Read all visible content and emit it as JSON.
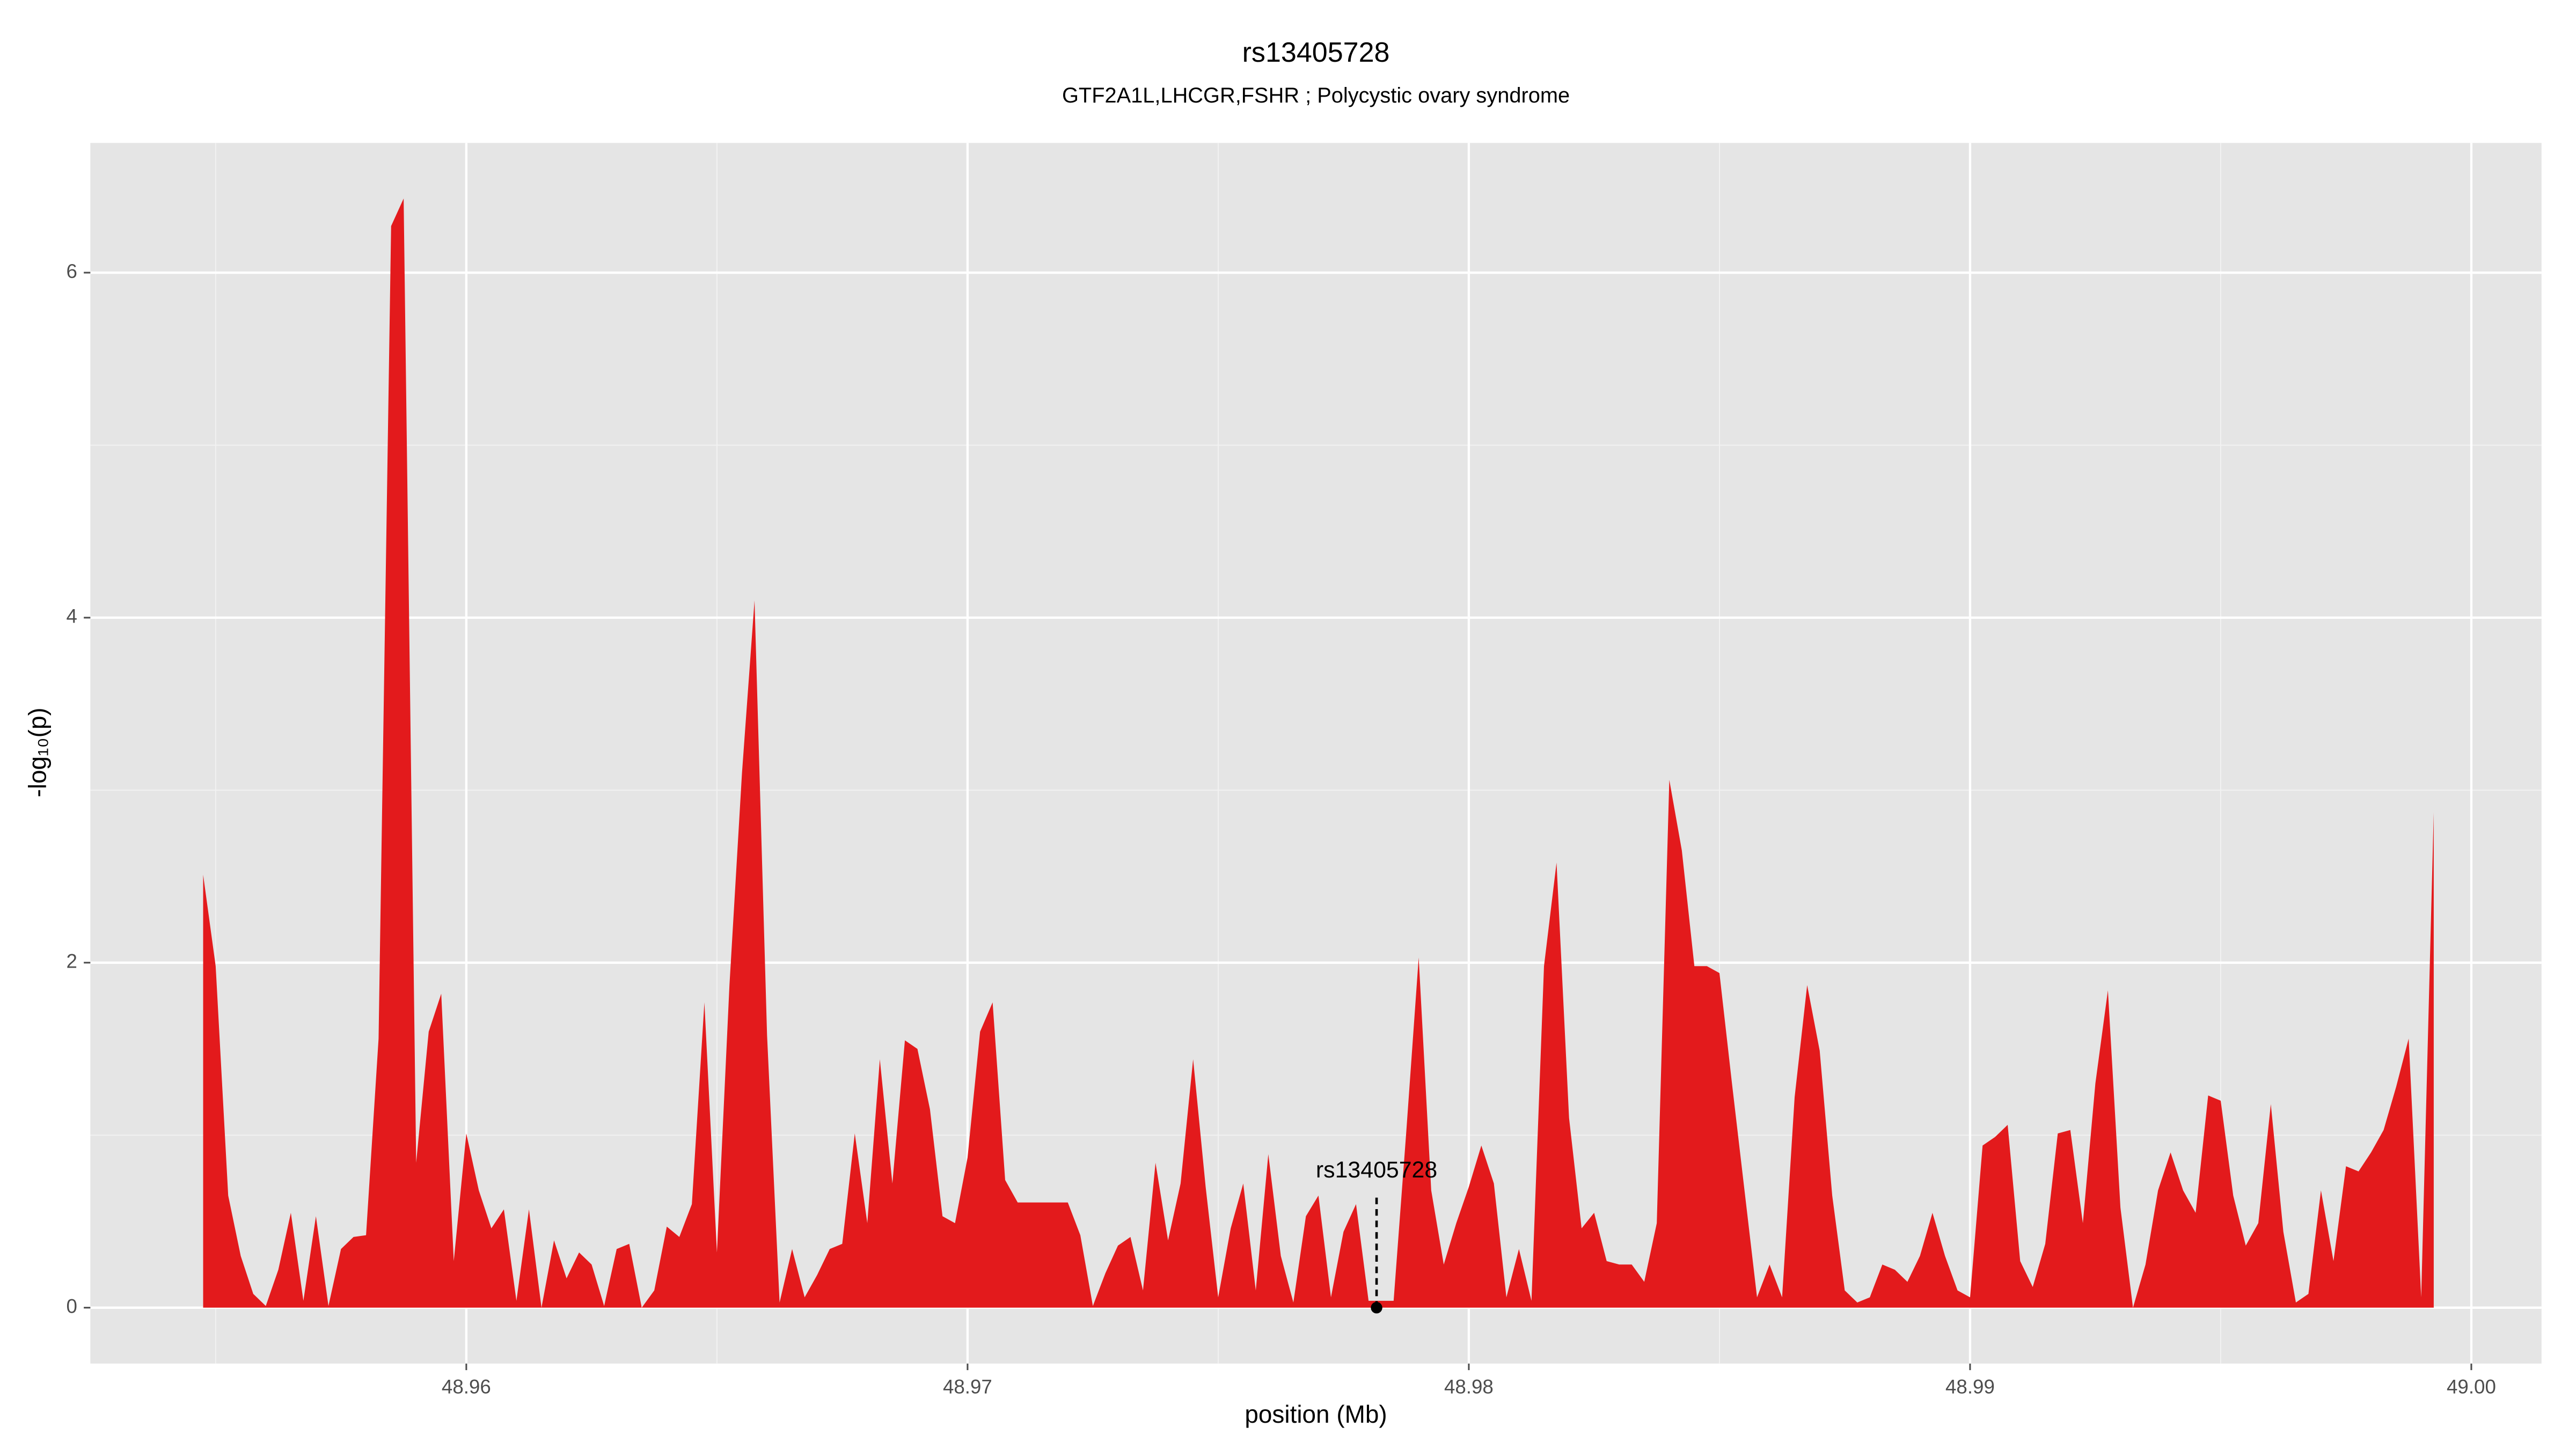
{
  "chart_data": {
    "type": "area",
    "title": "rs13405728",
    "subtitle": "GTF2A1L,LHCGR,FSHR ; Polycystic ovary syndrome",
    "x_label": "position (Mb)",
    "y_label": "-log₁₀(p)",
    "xlim": [
      48.9525,
      49.0014
    ],
    "ylim": [
      -0.324,
      6.752
    ],
    "xticks": [
      48.96,
      48.97,
      48.98,
      48.99,
      {
        "value": 49,
        "label": "49.00"
      }
    ],
    "yticks": [
      0,
      2,
      4,
      6
    ],
    "grid": true,
    "series": [
      {
        "color": "#e31a1c",
        "x": [
          48.95475,
          48.955,
          48.95525,
          48.9555,
          48.95575,
          48.956,
          48.95625,
          48.9565,
          48.95675,
          48.957,
          48.95725,
          48.9575,
          48.95775,
          48.958,
          48.95825,
          48.9585,
          48.95875,
          48.959,
          48.95925,
          48.9595,
          48.95975,
          48.96,
          48.96025,
          48.9605,
          48.96075,
          48.961,
          48.96125,
          48.9615,
          48.96175,
          48.962,
          48.96225,
          48.9625,
          48.96275,
          48.963,
          48.96325,
          48.9635,
          48.96375,
          48.964,
          48.96425,
          48.9645,
          48.96475,
          48.965,
          48.96525,
          48.9655,
          48.96575,
          48.966,
          48.96625,
          48.9665,
          48.96675,
          48.967,
          48.96725,
          48.9675,
          48.96775,
          48.968,
          48.96825,
          48.9685,
          48.96875,
          48.969,
          48.96925,
          48.9695,
          48.96975,
          48.97,
          48.97025,
          48.9705,
          48.97075,
          48.971,
          48.97125,
          48.9715,
          48.97175,
          48.972,
          48.97225,
          48.9725,
          48.97275,
          48.973,
          48.97325,
          48.9735,
          48.97375,
          48.974,
          48.97425,
          48.9745,
          48.97475,
          48.975,
          48.97525,
          48.9755,
          48.97575,
          48.976,
          48.97625,
          48.9765,
          48.97675,
          48.977,
          48.97725,
          48.9775,
          48.97775,
          48.978,
          48.97825,
          48.9785,
          48.97875,
          48.979,
          48.97925,
          48.9795,
          48.97975,
          48.98,
          48.98025,
          48.9805,
          48.98075,
          48.981,
          48.98125,
          48.9815,
          48.98175,
          48.982,
          48.98225,
          48.9825,
          48.98275,
          48.983,
          48.98325,
          48.9835,
          48.98375,
          48.984,
          48.98425,
          48.9845,
          48.98475,
          48.985,
          48.98525,
          48.9855,
          48.98575,
          48.986,
          48.98625,
          48.9865,
          48.98675,
          48.987,
          48.98725,
          48.9875,
          48.98775,
          48.988,
          48.98825,
          48.9885,
          48.98875,
          48.989,
          48.98925,
          48.9895,
          48.98975,
          48.99,
          48.99025,
          48.9905,
          48.99075,
          48.991,
          48.99125,
          48.9915,
          48.99175,
          48.992,
          48.99225,
          48.9925,
          48.99275,
          48.993,
          48.99325,
          48.9935,
          48.99375,
          48.994,
          48.99425,
          48.9945,
          48.99475,
          48.995,
          48.99525,
          48.9955,
          48.99575,
          48.996,
          48.99625,
          48.9965,
          48.99675,
          48.997,
          48.99725,
          48.9975,
          48.99775,
          48.998,
          48.99825,
          48.9985,
          48.99875,
          48.999,
          48.99925
        ],
        "values": [
          2.51,
          1.98,
          0.65,
          0.3,
          0.08,
          0.01,
          0.22,
          0.55,
          0.04,
          0.53,
          0.01,
          0.34,
          0.41,
          0.42,
          1.56,
          6.27,
          6.43,
          0.84,
          1.6,
          1.82,
          0.27,
          1.01,
          0.68,
          0.46,
          0.57,
          0.04,
          0.57,
          0,
          0.39,
          0.17,
          0.32,
          0.25,
          0.01,
          0.34,
          0.37,
          0,
          0.1,
          0.47,
          0.41,
          0.6,
          1.77,
          0.32,
          1.87,
          3.1,
          4.1,
          1.58,
          0.03,
          0.34,
          0.06,
          0.19,
          0.34,
          0.37,
          1.01,
          0.49,
          1.44,
          0.72,
          1.55,
          1.5,
          1.15,
          0.53,
          0.49,
          0.87,
          1.6,
          1.77,
          0.74,
          0.61,
          0.61,
          0.61,
          0.61,
          0.61,
          0.42,
          0.01,
          0.2,
          0.36,
          0.41,
          0.1,
          0.84,
          0.39,
          0.72,
          1.44,
          0.7,
          0.06,
          0.46,
          0.72,
          0.1,
          0.89,
          0.3,
          0.03,
          0.53,
          0.65,
          0.06,
          0.44,
          0.6,
          0.04,
          0.04,
          0.04,
          1.01,
          2.03,
          0.68,
          0.25,
          0.49,
          0.7,
          0.94,
          0.72,
          0.06,
          0.34,
          0.04,
          1.98,
          2.58,
          1.1,
          0.46,
          0.55,
          0.27,
          0.25,
          0.25,
          0.15,
          0.49,
          3.06,
          2.65,
          1.98,
          1.98,
          1.94,
          1.3,
          0.68,
          0.06,
          0.25,
          0.06,
          1.22,
          1.87,
          1.49,
          0.65,
          0.1,
          0.03,
          0.06,
          0.25,
          0.22,
          0.15,
          0.3,
          0.55,
          0.3,
          0.1,
          0.06,
          0.94,
          0.99,
          1.06,
          0.27,
          0.12,
          0.37,
          1.01,
          1.03,
          0.49,
          1.3,
          1.84,
          0.58,
          0,
          0.25,
          0.68,
          0.9,
          0.68,
          0.55,
          1.23,
          1.2,
          0.65,
          0.36,
          0.49,
          1.18,
          0.44,
          0.03,
          0.08,
          0.68,
          0.27,
          0.82,
          0.79,
          0.9,
          1.03,
          1.28,
          1.56,
          0.06,
          2.87
        ]
      }
    ],
    "annotation": {
      "label": "rs13405728",
      "x": 48.97816,
      "y": 0
    }
  }
}
